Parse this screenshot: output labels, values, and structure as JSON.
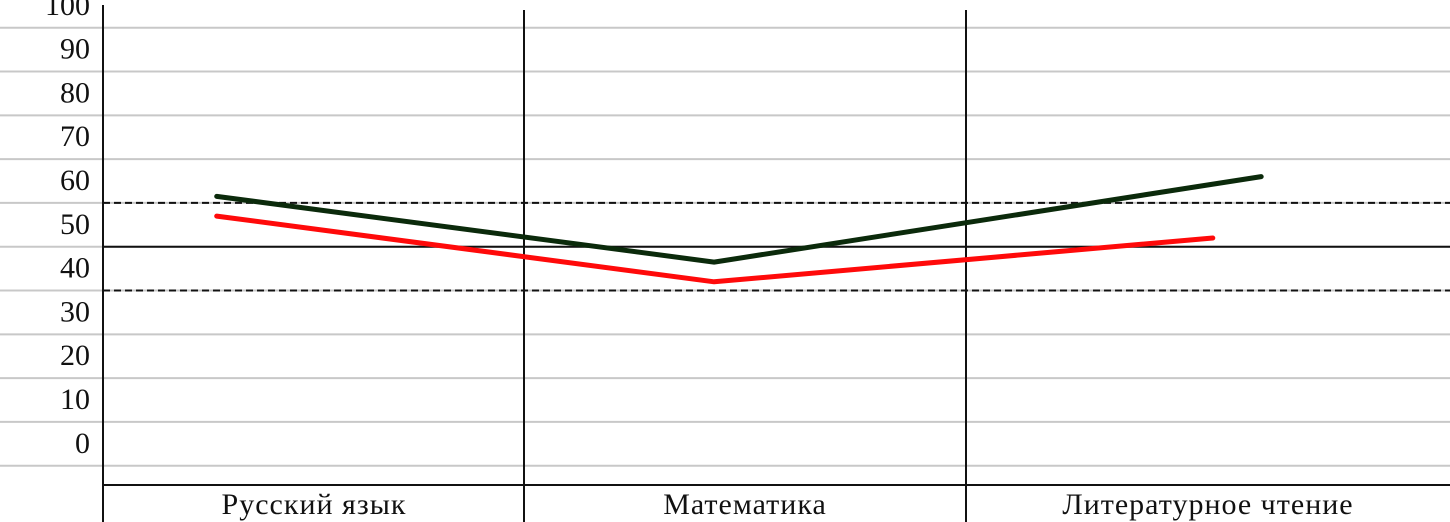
{
  "chart_data": {
    "type": "line",
    "title": "",
    "xlabel": "",
    "ylabel": "",
    "categories": [
      "Русский язык",
      "Математика",
      "Литературное чтение"
    ],
    "y_ticks": [
      "100",
      "90",
      "80",
      "70",
      "60",
      "50",
      "40",
      "30",
      "20",
      "10",
      "0"
    ],
    "ylim": [
      0,
      100
    ],
    "grid": true,
    "reference_lines": [
      {
        "style": "dashed",
        "value": 55
      },
      {
        "style": "solid",
        "value": 45
      },
      {
        "style": "dashed",
        "value": 35
      }
    ],
    "series": [
      {
        "color": "#0b2a0b",
        "points": [
          {
            "x": 0.27,
            "y": 56.5
          },
          {
            "x": 1.43,
            "y": 41.5
          },
          {
            "x": 2.61,
            "y": 61
          }
        ]
      },
      {
        "color": "#ff0a0a",
        "points": [
          {
            "x": 0.27,
            "y": 52
          },
          {
            "x": 1.43,
            "y": 37
          },
          {
            "x": 2.51,
            "y": 47
          }
        ]
      }
    ]
  }
}
